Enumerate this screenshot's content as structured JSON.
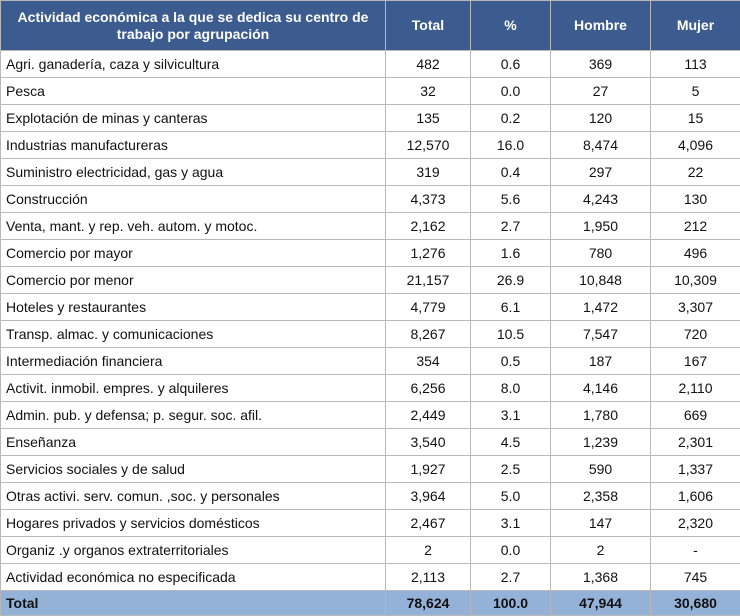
{
  "table": {
    "header": [
      "Actividad económica a la que se dedica su centro de trabajo por agrupación",
      "Total",
      "%",
      "Hombre",
      "Mujer"
    ],
    "rows": [
      [
        "Agri. ganadería, caza y silvicultura",
        "482",
        "0.6",
        "369",
        "113"
      ],
      [
        "Pesca",
        "32",
        "0.0",
        "27",
        "5"
      ],
      [
        "Explotación de minas y canteras",
        "135",
        "0.2",
        "120",
        "15"
      ],
      [
        "Industrias manufactureras",
        "12,570",
        "16.0",
        "8,474",
        "4,096"
      ],
      [
        "Suministro electricidad, gas y agua",
        "319",
        "0.4",
        "297",
        "22"
      ],
      [
        "Construcción",
        "4,373",
        "5.6",
        "4,243",
        "130"
      ],
      [
        "Venta, mant. y rep. veh. autom. y motoc.",
        "2,162",
        "2.7",
        "1,950",
        "212"
      ],
      [
        "Comercio por mayor",
        "1,276",
        "1.6",
        "780",
        "496"
      ],
      [
        "Comercio por menor",
        "21,157",
        "26.9",
        "10,848",
        "10,309"
      ],
      [
        "Hoteles y restaurantes",
        "4,779",
        "6.1",
        "1,472",
        "3,307"
      ],
      [
        "Transp. almac. y comunicaciones",
        "8,267",
        "10.5",
        "7,547",
        "720"
      ],
      [
        "Intermediación financiera",
        "354",
        "0.5",
        "187",
        "167"
      ],
      [
        "Activit. inmobil. empres. y alquileres",
        "6,256",
        "8.0",
        "4,146",
        "2,110"
      ],
      [
        "Admin. pub. y defensa;  p. segur. soc. afil.",
        "2,449",
        "3.1",
        "1,780",
        "669"
      ],
      [
        "Enseñanza",
        "3,540",
        "4.5",
        "1,239",
        "2,301"
      ],
      [
        "Servicios sociales y de salud",
        "1,927",
        "2.5",
        "590",
        "1,337"
      ],
      [
        "Otras activi. serv. comun. ,soc. y personales",
        "3,964",
        "5.0",
        "2,358",
        "1,606"
      ],
      [
        "Hogares privados y servicios domésticos",
        "2,467",
        "3.1",
        "147",
        "2,320"
      ],
      [
        "Organiz .y organos extraterritoriales",
        "2",
        "0.0",
        "2",
        "-"
      ],
      [
        "Actividad económica no especificada",
        "2,113",
        "2.7",
        "1,368",
        "745"
      ]
    ],
    "total": [
      "Total",
      "78,624",
      "100.0",
      "47,944",
      "30,680"
    ]
  }
}
